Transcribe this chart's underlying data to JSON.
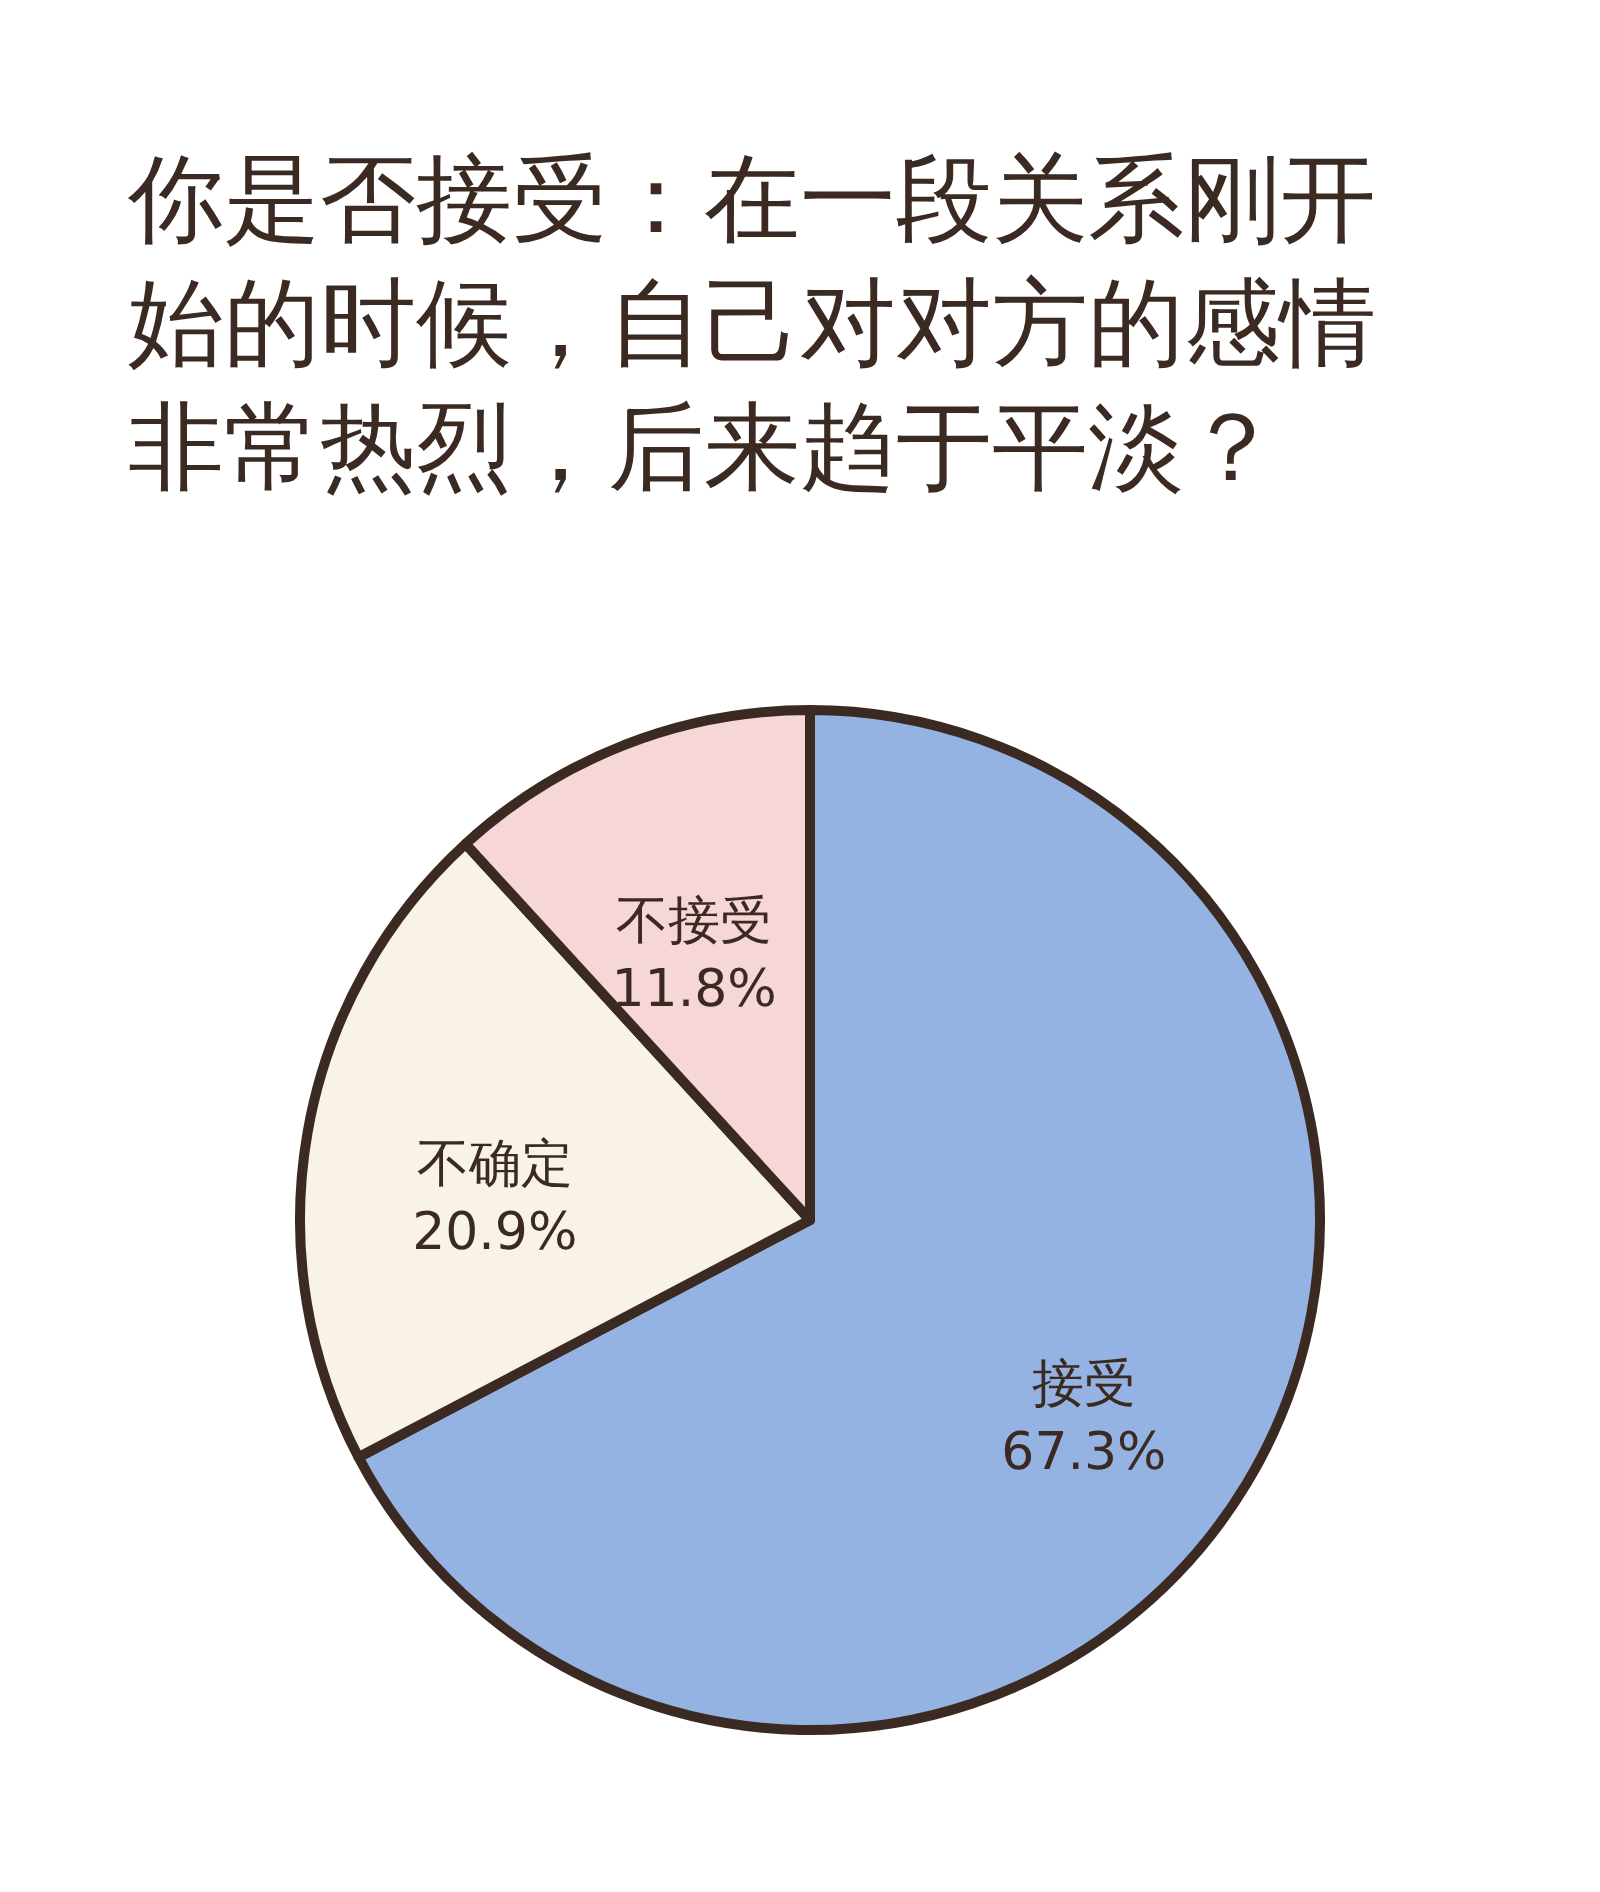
{
  "chart_data": {
    "type": "pie",
    "title": "你是否接受：在一段关系刚开始的时候，自己对对方的感情非常热烈，后来趋于平淡？",
    "categories": [
      "接受",
      "不确定",
      "不接受"
    ],
    "values": [
      67.3,
      20.9,
      11.8
    ],
    "value_labels": [
      "67.3%",
      "20.9%",
      "11.8%"
    ],
    "colors": [
      "#95b3e2",
      "#f8f3e6",
      "#f7d6d7"
    ]
  }
}
